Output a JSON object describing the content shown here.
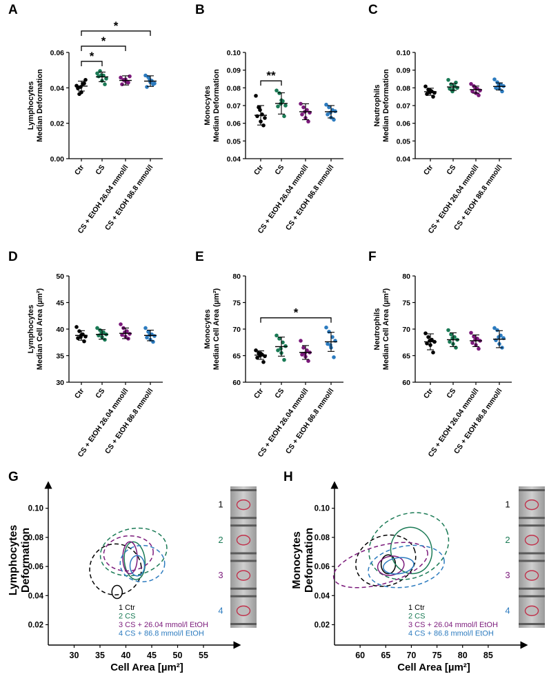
{
  "chart_data": [
    {
      "panel": "A",
      "type": "scatter",
      "ylabel_lines": [
        "Lymphocytes",
        "Median Deformation"
      ],
      "ylim": [
        0.0,
        0.06
      ],
      "yticks": [
        "0.00",
        "0.02",
        "0.04",
        "0.06"
      ],
      "categories": [
        "Ctr",
        "CS",
        "CS + EtOH 26.04 mmol/l",
        "CS + EtOH 86.8 mmol/l"
      ],
      "series": [
        {
          "name": "Ctr",
          "color": "#000000",
          "mean": 0.041,
          "sd": 0.0028,
          "points": [
            0.0412,
            0.0365,
            0.0423,
            0.0445,
            0.0397,
            0.0375,
            0.0425,
            0.0405
          ]
        },
        {
          "name": "CS",
          "color": "#1a7a55",
          "mean": 0.0462,
          "sd": 0.0027,
          "points": [
            0.0482,
            0.0495,
            0.047,
            0.0452,
            0.0465,
            0.044,
            0.042,
            0.0472
          ]
        },
        {
          "name": "CS + EtOH 26.04 mmol/l",
          "color": "#7b1a7b",
          "mean": 0.0442,
          "sd": 0.0026,
          "points": [
            0.0458,
            0.0445,
            0.0432,
            0.0465,
            0.042,
            0.0448,
            0.043,
            0.044
          ]
        },
        {
          "name": "CS + EtOH 86.8 mmol/l",
          "color": "#2c7bbf",
          "mean": 0.0438,
          "sd": 0.003,
          "points": [
            0.047,
            0.046,
            0.044,
            0.0425,
            0.0405,
            0.0432,
            0.042,
            0.0446
          ]
        }
      ],
      "significance": [
        {
          "from": 0,
          "to": 1,
          "label": "*"
        },
        {
          "from": 0,
          "to": 2,
          "label": "*"
        },
        {
          "from": 0,
          "to": 3,
          "label": "*"
        }
      ]
    },
    {
      "panel": "B",
      "type": "scatter",
      "ylabel_lines": [
        "Monocytes",
        "Median Deformation"
      ],
      "ylim": [
        0.04,
        0.1
      ],
      "yticks": [
        "0.04",
        "0.05",
        "0.06",
        "0.07",
        "0.08",
        "0.09",
        "0.10"
      ],
      "categories": [
        "Ctr",
        "CS",
        "CS + EtOH 26.04 mmol/l",
        "CS + EtOH 86.8 mmol/l"
      ],
      "series": [
        {
          "name": "Ctr",
          "color": "#000000",
          "mean": 0.0645,
          "sd": 0.0055,
          "points": [
            0.0755,
            0.069,
            0.065,
            0.063,
            0.064,
            0.061,
            0.0588,
            0.0675
          ]
        },
        {
          "name": "CS",
          "color": "#1a7a55",
          "mean": 0.0712,
          "sd": 0.006,
          "points": [
            0.0785,
            0.077,
            0.0725,
            0.07,
            0.0695,
            0.073,
            0.064,
            0.071
          ]
        },
        {
          "name": "CS + EtOH 26.04 mmol/l",
          "color": "#7b1a7b",
          "mean": 0.0665,
          "sd": 0.0045,
          "points": [
            0.071,
            0.069,
            0.0675,
            0.066,
            0.065,
            0.063,
            0.061,
            0.0665
          ]
        },
        {
          "name": "CS + EtOH 86.8 mmol/l",
          "color": "#2c7bbf",
          "mean": 0.0665,
          "sd": 0.0035,
          "points": [
            0.0705,
            0.069,
            0.0675,
            0.0668,
            0.065,
            0.0632,
            0.062,
            0.066
          ]
        }
      ],
      "significance": [
        {
          "from": 0,
          "to": 1,
          "label": "**"
        }
      ]
    },
    {
      "panel": "C",
      "type": "scatter",
      "ylabel_lines": [
        "Neutrophils",
        "Median Deformation"
      ],
      "ylim": [
        0.04,
        0.1
      ],
      "yticks": [
        "0.04",
        "0.05",
        "0.06",
        "0.07",
        "0.08",
        "0.09",
        "0.10"
      ],
      "categories": [
        "Ctr",
        "CS",
        "CS + EtOH 26.04 mmol/l",
        "CS + EtOH 86.8 mmol/l"
      ],
      "series": [
        {
          "name": "Ctr",
          "color": "#000000",
          "mean": 0.0778,
          "sd": 0.002,
          "points": [
            0.0808,
            0.079,
            0.078,
            0.0772,
            0.0765,
            0.0785,
            0.075,
            0.0775
          ]
        },
        {
          "name": "CS",
          "color": "#1a7a55",
          "mean": 0.0805,
          "sd": 0.002,
          "points": [
            0.0845,
            0.082,
            0.081,
            0.08,
            0.0795,
            0.079,
            0.083,
            0.078
          ]
        },
        {
          "name": "CS + EtOH 26.04 mmol/l",
          "color": "#7b1a7b",
          "mean": 0.079,
          "sd": 0.002,
          "points": [
            0.0822,
            0.081,
            0.0795,
            0.0785,
            0.078,
            0.077,
            0.0758,
            0.08
          ]
        },
        {
          "name": "CS + EtOH 86.8 mmol/l",
          "color": "#2c7bbf",
          "mean": 0.0808,
          "sd": 0.002,
          "points": [
            0.0848,
            0.0832,
            0.082,
            0.081,
            0.08,
            0.0795,
            0.078,
            0.0815
          ]
        }
      ],
      "significance": []
    },
    {
      "panel": "D",
      "type": "scatter",
      "ylabel_lines": [
        "Lymphocytes",
        "Median Cell Area (µm²)"
      ],
      "ylim": [
        30,
        50
      ],
      "yticks": [
        "30",
        "35",
        "40",
        "45",
        "50"
      ],
      "categories": [
        "Ctr",
        "CS",
        "CS + EtOH 26.04 mmol/l",
        "CS + EtOH 86.8 mmol/l"
      ],
      "series": [
        {
          "name": "Ctr",
          "color": "#000000",
          "mean": 38.8,
          "sd": 0.9,
          "points": [
            40.4,
            39.6,
            39.0,
            38.6,
            38.3,
            38.9,
            37.7,
            38.5
          ]
        },
        {
          "name": "CS",
          "color": "#1a7a55",
          "mean": 39.0,
          "sd": 0.9,
          "points": [
            40.2,
            39.8,
            39.4,
            39.0,
            38.8,
            38.5,
            38.0,
            39.2
          ]
        },
        {
          "name": "CS + EtOH 26.04 mmol/l",
          "color": "#7b1a7b",
          "mean": 39.2,
          "sd": 1.0,
          "points": [
            40.9,
            40.2,
            39.6,
            39.1,
            38.9,
            38.6,
            38.2,
            39.4
          ]
        },
        {
          "name": "CS + EtOH 86.8 mmol/l",
          "color": "#2c7bbf",
          "mean": 38.8,
          "sd": 1.0,
          "points": [
            40.2,
            39.5,
            39.0,
            38.7,
            38.4,
            38.0,
            37.6,
            38.9
          ]
        }
      ],
      "significance": []
    },
    {
      "panel": "E",
      "type": "scatter",
      "ylabel_lines": [
        "Monocytes",
        "Median Cell Area (µm²)"
      ],
      "ylim": [
        60,
        80
      ],
      "yticks": [
        "60",
        "65",
        "70",
        "75",
        "80"
      ],
      "categories": [
        "Ctr",
        "CS",
        "CS + EtOH 26.04 mmol/l",
        "CS + EtOH 86.8 mmol/l"
      ],
      "series": [
        {
          "name": "Ctr",
          "color": "#000000",
          "mean": 65.1,
          "sd": 0.8,
          "points": [
            66.0,
            65.5,
            65.2,
            64.9,
            64.6,
            65.4,
            63.8,
            65.0
          ]
        },
        {
          "name": "CS",
          "color": "#1a7a55",
          "mean": 66.7,
          "sd": 1.8,
          "points": [
            68.8,
            68.2,
            67.5,
            66.8,
            66.0,
            65.5,
            64.2,
            66.3
          ]
        },
        {
          "name": "CS + EtOH 26.04 mmol/l",
          "color": "#7b1a7b",
          "mean": 65.6,
          "sd": 1.3,
          "points": [
            67.8,
            66.5,
            66.0,
            65.6,
            65.2,
            64.8,
            64.0,
            65.4
          ]
        },
        {
          "name": "CS + EtOH 86.8 mmol/l",
          "color": "#2c7bbf",
          "mean": 67.6,
          "sd": 1.8,
          "points": [
            70.3,
            69.5,
            68.5,
            67.8,
            67.2,
            66.5,
            64.7,
            67.0
          ]
        }
      ],
      "significance": [
        {
          "from": 0,
          "to": 3,
          "label": "*"
        }
      ]
    },
    {
      "panel": "F",
      "type": "scatter",
      "ylabel_lines": [
        "Neutrophils",
        "Median Cell Area (µm²)"
      ],
      "ylim": [
        60,
        80
      ],
      "yticks": [
        "60",
        "65",
        "70",
        "75",
        "80"
      ],
      "categories": [
        "Ctr",
        "CS",
        "CS + EtOH 26.04 mmol/l",
        "CS + EtOH 86.8 mmol/l"
      ],
      "series": [
        {
          "name": "Ctr",
          "color": "#000000",
          "mean": 67.6,
          "sd": 1.5,
          "points": [
            69.2,
            68.5,
            68.0,
            67.6,
            67.3,
            67.0,
            65.6,
            67.8
          ]
        },
        {
          "name": "CS",
          "color": "#1a7a55",
          "mean": 68.0,
          "sd": 1.3,
          "points": [
            69.8,
            69.0,
            68.5,
            68.0,
            67.6,
            67.2,
            66.5,
            68.3
          ]
        },
        {
          "name": "CS + EtOH 26.04 mmol/l",
          "color": "#7b1a7b",
          "mean": 67.8,
          "sd": 1.1,
          "points": [
            69.3,
            68.6,
            68.2,
            67.8,
            67.4,
            67.0,
            66.3,
            68.0
          ]
        },
        {
          "name": "CS + EtOH 86.8 mmol/l",
          "color": "#2c7bbf",
          "mean": 68.1,
          "sd": 1.6,
          "points": [
            70.2,
            69.8,
            68.8,
            68.3,
            67.9,
            67.2,
            66.5,
            68.5
          ]
        }
      ],
      "significance": []
    },
    {
      "panel": "G",
      "type": "contour",
      "title_lines": [
        "Lymphocytes",
        "Deformation"
      ],
      "xlabel": "Cell Area [µm²]",
      "xlim": [
        25,
        59
      ],
      "ylim": [
        0.006,
        0.116
      ],
      "xticks": [
        30,
        35,
        40,
        45,
        50,
        55
      ],
      "yticks": [
        "0.02",
        "0.04",
        "0.06",
        "0.08",
        "0.10"
      ],
      "legend": [
        {
          "text": "1 Ctr",
          "color": "#000000"
        },
        {
          "text": "2 CS",
          "color": "#1a7a55"
        },
        {
          "text": "3 CS + 26.04 mmol/l EtOH",
          "color": "#7b1a7b"
        },
        {
          "text": "4 CS + 86.8 mmol/l EtOH",
          "color": "#2c7bbf"
        }
      ],
      "image_labels": [
        "1",
        "2",
        "3",
        "4"
      ],
      "contours": [
        {
          "name": "Ctr",
          "color": "#000000",
          "style": "solid",
          "cx": 38.3,
          "cy": 0.0425,
          "rx": 1.0,
          "ry": 0.0045,
          "rot": 0
        },
        {
          "name": "Ctr",
          "color": "#000000",
          "style": "dashed",
          "cx": 38.0,
          "cy": 0.058,
          "rx": 5.0,
          "ry": 0.0175,
          "rot": 10
        },
        {
          "name": "CS",
          "color": "#1a7a55",
          "style": "solid",
          "cx": 41.7,
          "cy": 0.064,
          "rx": 2.0,
          "ry": 0.013,
          "rot": 6
        },
        {
          "name": "CS",
          "color": "#1a7a55",
          "style": "dashed",
          "cx": 41.5,
          "cy": 0.07,
          "rx": 6.5,
          "ry": 0.016,
          "rot": 12
        },
        {
          "name": "CS + 26.04 mmol/l EtOH",
          "color": "#7b1a7b",
          "style": "solid",
          "cx": 40.8,
          "cy": 0.066,
          "rx": 1.4,
          "ry": 0.011,
          "rot": 0
        },
        {
          "name": "CS + 26.04 mmol/l EtOH",
          "color": "#7b1a7b",
          "style": "dashed",
          "cx": 40.5,
          "cy": 0.069,
          "rx": 4.8,
          "ry": 0.012,
          "rot": 5
        },
        {
          "name": "CS + 86.8 mmol/l EtOH",
          "color": "#2c7bbf",
          "style": "solid",
          "cx": 42.2,
          "cy": 0.0605,
          "rx": 1.4,
          "ry": 0.007,
          "rot": 0
        },
        {
          "name": "CS + 86.8 mmol/l EtOH",
          "color": "#2c7bbf",
          "style": "dashed",
          "cx": 43.2,
          "cy": 0.062,
          "rx": 4.3,
          "ry": 0.0125,
          "rot": 0
        }
      ]
    },
    {
      "panel": "H",
      "type": "contour",
      "title_lines": [
        "Monocytes",
        "Deformation"
      ],
      "xlabel": "Cell Area [µm²]",
      "xlim": [
        55,
        90
      ],
      "ylim": [
        0.006,
        0.116
      ],
      "xticks": [
        60,
        65,
        70,
        75,
        80,
        85
      ],
      "yticks": [
        "0.02",
        "0.04",
        "0.06",
        "0.08",
        "0.10"
      ],
      "legend": [
        {
          "text": "1 Ctr",
          "color": "#000000"
        },
        {
          "text": "2 CS",
          "color": "#1a7a55"
        },
        {
          "text": "3 CS + 26.04 mmol/l EtOH",
          "color": "#7b1a7b"
        },
        {
          "text": "4 CS + 86.8 mmol/l EtOH",
          "color": "#2c7bbf"
        }
      ],
      "image_labels": [
        "1",
        "2",
        "3",
        "4"
      ],
      "contours": [
        {
          "name": "Ctr",
          "color": "#000000",
          "style": "solid",
          "cx": 65.5,
          "cy": 0.0615,
          "rx": 1.4,
          "ry": 0.0065,
          "rot": 0
        },
        {
          "name": "Ctr",
          "color": "#000000",
          "style": "dashed",
          "cx": 65.0,
          "cy": 0.064,
          "rx": 6.0,
          "ry": 0.017,
          "rot": 22
        },
        {
          "name": "CS",
          "color": "#1a7a55",
          "style": "solid",
          "cx": 70.0,
          "cy": 0.071,
          "rx": 4.0,
          "ry": 0.016,
          "rot": 12
        },
        {
          "name": "CS",
          "color": "#1a7a55",
          "style": "dashed",
          "cx": 69.5,
          "cy": 0.074,
          "rx": 8.0,
          "ry": 0.022,
          "rot": 22
        },
        {
          "name": "CS + 26.04 mmol/l EtOH",
          "color": "#7b1a7b",
          "style": "solid",
          "cx": 66.0,
          "cy": 0.0605,
          "rx": 2.6,
          "ry": 0.0065,
          "rot": 12
        },
        {
          "name": "CS + 26.04 mmol/l EtOH",
          "color": "#7b1a7b",
          "style": "dashed",
          "cx": 64.0,
          "cy": 0.061,
          "rx": 9.5,
          "ry": 0.013,
          "rot": 16
        },
        {
          "name": "CS + 86.8 mmol/l EtOH",
          "color": "#2c7bbf",
          "style": "solid",
          "cx": 67.5,
          "cy": 0.0605,
          "rx": 3.0,
          "ry": 0.0055,
          "rot": 8
        },
        {
          "name": "CS + 86.8 mmol/l EtOH",
          "color": "#2c7bbf",
          "style": "dashed",
          "cx": 69.0,
          "cy": 0.06,
          "rx": 7.5,
          "ry": 0.014,
          "rot": 10
        }
      ]
    }
  ]
}
